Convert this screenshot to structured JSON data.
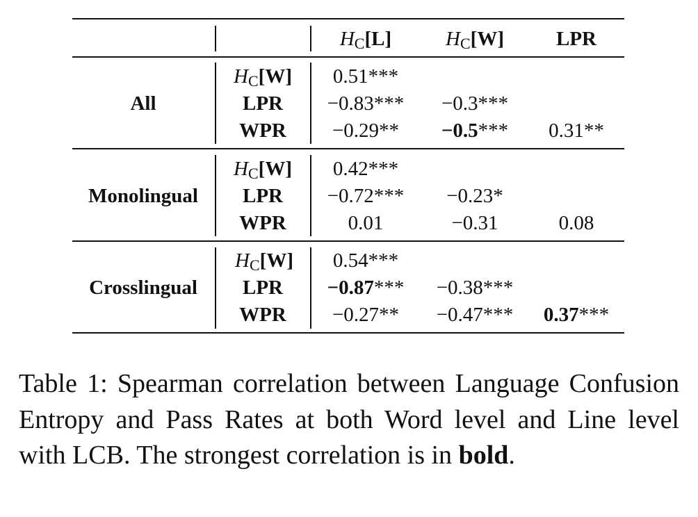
{
  "table": {
    "header": {
      "col1": {
        "sym": "H",
        "sub": "C",
        "arg": "[L]"
      },
      "col2": {
        "sym": "H",
        "sub": "C",
        "arg": "[W]"
      },
      "col3": "LPR"
    },
    "groups": [
      {
        "name": "All",
        "rows": [
          {
            "label": {
              "sym": "H",
              "sub": "C",
              "arg": "[W]"
            },
            "cells": [
              {
                "value": "0.51",
                "stars": "***",
                "bold": false
              }
            ]
          },
          {
            "label": "LPR",
            "cells": [
              {
                "value": "−0.83",
                "stars": "***",
                "bold": false
              },
              {
                "value": "−0.3",
                "stars": "***",
                "bold": false
              }
            ]
          },
          {
            "label": "WPR",
            "cells": [
              {
                "value": "−0.29",
                "stars": "**",
                "bold": false
              },
              {
                "value": "−0.5",
                "stars": "***",
                "bold": true
              },
              {
                "value": "0.31",
                "stars": "**",
                "bold": false
              }
            ]
          }
        ]
      },
      {
        "name": "Monolingual",
        "rows": [
          {
            "label": {
              "sym": "H",
              "sub": "C",
              "arg": "[W]"
            },
            "cells": [
              {
                "value": "0.42",
                "stars": "***",
                "bold": false
              }
            ]
          },
          {
            "label": "LPR",
            "cells": [
              {
                "value": "−0.72",
                "stars": "***",
                "bold": false
              },
              {
                "value": "−0.23",
                "stars": "*",
                "bold": false
              }
            ]
          },
          {
            "label": "WPR",
            "cells": [
              {
                "value": "0.01",
                "stars": "",
                "bold": false
              },
              {
                "value": "−0.31",
                "stars": "",
                "bold": false
              },
              {
                "value": "0.08",
                "stars": "",
                "bold": false
              }
            ]
          }
        ]
      },
      {
        "name": "Crosslingual",
        "rows": [
          {
            "label": {
              "sym": "H",
              "sub": "C",
              "arg": "[W]"
            },
            "cells": [
              {
                "value": "0.54",
                "stars": "***",
                "bold": false
              }
            ]
          },
          {
            "label": "LPR",
            "cells": [
              {
                "value": "−0.87",
                "stars": "***",
                "bold": true
              },
              {
                "value": "−0.38",
                "stars": "***",
                "bold": false
              }
            ]
          },
          {
            "label": "WPR",
            "cells": [
              {
                "value": "−0.27",
                "stars": "**",
                "bold": false
              },
              {
                "value": "−0.47",
                "stars": "***",
                "bold": false
              },
              {
                "value": "0.37",
                "stars": "***",
                "bold": true
              }
            ]
          }
        ]
      }
    ]
  },
  "caption": {
    "label": "Table 1:",
    "text": "Spearman correlation between Language Confusion Entropy and Pass Rates at both Word level and Line level with LCB. The strongest correlation is in",
    "bold_word": "bold",
    "end": "."
  }
}
